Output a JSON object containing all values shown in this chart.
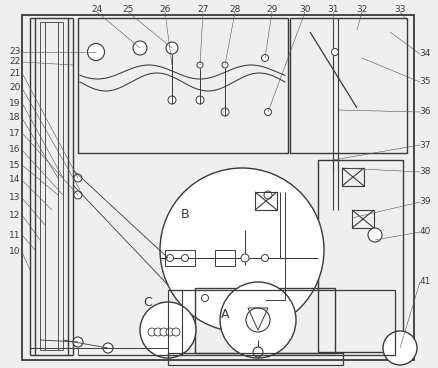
{
  "fig_w": 4.38,
  "fig_h": 3.68,
  "dpi": 100,
  "lc": "#3a3a3a",
  "bg": "#efefef",
  "top_labels": [
    [
      "24",
      97
    ],
    [
      "25",
      128
    ],
    [
      "26",
      165
    ],
    [
      "27",
      203
    ],
    [
      "28",
      235
    ],
    [
      "29",
      272
    ],
    [
      "30",
      305
    ],
    [
      "31",
      333
    ],
    [
      "32",
      362
    ],
    [
      "33",
      400
    ]
  ],
  "right_labels": [
    [
      "34",
      54
    ],
    [
      "35",
      82
    ],
    [
      "36",
      112
    ],
    [
      "37",
      145
    ],
    [
      "38",
      172
    ],
    [
      "39",
      202
    ],
    [
      "40",
      232
    ],
    [
      "41",
      282
    ]
  ],
  "left_labels": [
    [
      "23",
      52
    ],
    [
      "22",
      62
    ],
    [
      "21",
      73
    ],
    [
      "20",
      88
    ],
    [
      "19",
      103
    ],
    [
      "18",
      118
    ],
    [
      "17",
      133
    ],
    [
      "16",
      150
    ],
    [
      "15",
      165
    ],
    [
      "14",
      180
    ],
    [
      "13",
      198
    ],
    [
      "12",
      215
    ],
    [
      "11",
      235
    ],
    [
      "10",
      252
    ]
  ]
}
